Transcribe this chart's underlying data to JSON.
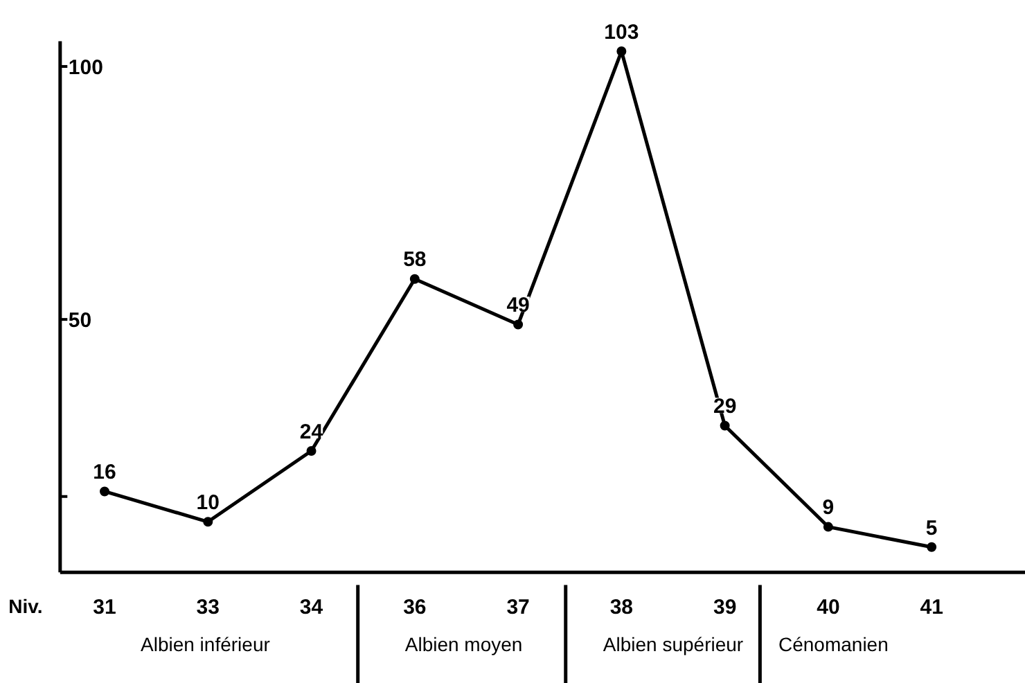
{
  "chart_data": {
    "type": "line",
    "xlabel": "Niv.",
    "categories": [
      "31",
      "33",
      "34",
      "36",
      "37",
      "38",
      "39",
      "40",
      "41"
    ],
    "values": [
      16,
      10,
      24,
      58,
      49,
      103,
      29,
      9,
      5
    ],
    "color": "#000000",
    "marker": "circle",
    "line_style": "solid",
    "data_labels": true,
    "grid": false,
    "ylim": [
      0,
      105
    ],
    "yticks": [
      {
        "value": 15,
        "label": null
      },
      50,
      100
    ],
    "annotations": [
      "Albien  inférieur",
      "Albien  moyen",
      "Albien supérieur",
      "Cénomanien"
    ]
  }
}
